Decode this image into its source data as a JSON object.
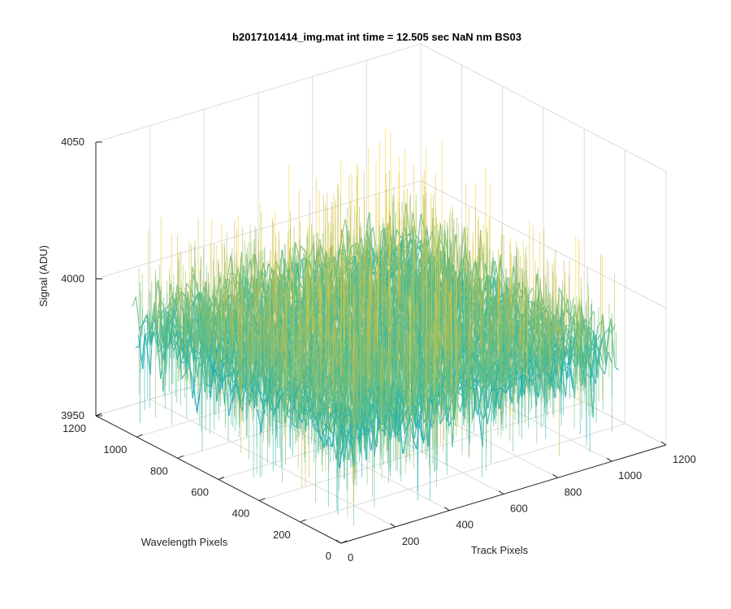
{
  "figure": {
    "background": "#ffffff",
    "axis_color": "#262626",
    "grid_color": "#dcdcdc",
    "colormap": "parula"
  },
  "chart_data": {
    "type": "surface",
    "title": "b2017101414_img.mat int time = 12.505 sec  NaN nm BS03",
    "xlabel": "Track Pixels",
    "ylabel": "Wavelength Pixels",
    "zlabel": "Signal (ADU)",
    "xlim": [
      0,
      1200
    ],
    "ylim": [
      0,
      1200
    ],
    "zlim": [
      3950,
      4050
    ],
    "xticks": [
      0,
      200,
      400,
      600,
      800,
      1000,
      1200
    ],
    "yticks": [
      0,
      200,
      400,
      600,
      800,
      1000,
      1200
    ],
    "zticks": [
      3950,
      4000,
      4050
    ],
    "grid": true,
    "data_extent": {
      "x": [
        0,
        1024
      ],
      "y": [
        0,
        1024
      ]
    },
    "signal_mean": 3990,
    "signal_range": [
      3955,
      4035
    ],
    "noise_std": 7
  }
}
